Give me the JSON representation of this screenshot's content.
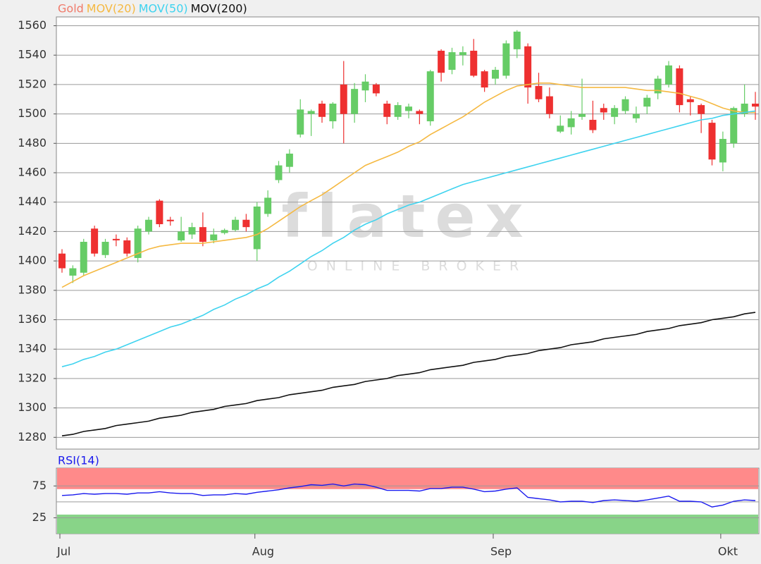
{
  "chart_data": [
    {
      "type": "candlestick",
      "name": "Gold",
      "name_color": "#f07a6a",
      "watermark": "flatex",
      "watermark_subtitle": "ONLINE BROKER",
      "up_color": "#66cc66",
      "down_color": "#ee3030",
      "categories": [
        "Jul",
        null,
        null,
        null,
        null,
        null,
        null,
        null,
        null,
        null,
        null,
        null,
        null,
        null,
        null,
        null,
        null,
        null,
        "Aug",
        null,
        null,
        null,
        null,
        null,
        null,
        null,
        null,
        null,
        null,
        null,
        null,
        null,
        null,
        null,
        null,
        null,
        null,
        null,
        null,
        null,
        "Sep",
        null,
        null,
        null,
        null,
        null,
        null,
        null,
        null,
        null,
        null,
        null,
        null,
        null,
        null,
        null,
        null,
        null,
        null,
        null,
        null,
        "Okt",
        null,
        null,
        null
      ],
      "open": [
        1405,
        1390,
        1392,
        1422,
        1404,
        1415,
        1414,
        1402,
        1420,
        1441,
        1428,
        1414,
        1418,
        1423,
        1414,
        1419,
        1421,
        1428,
        1408,
        1432,
        1455,
        1464,
        1486,
        1500,
        1507,
        1495,
        1520,
        1500,
        1516,
        1520,
        1507,
        1498,
        1502,
        1502,
        1495,
        1543,
        1530,
        1540,
        1543,
        1529,
        1524,
        1526,
        1544,
        1546,
        1519,
        1512,
        1488,
        1491,
        1498,
        1496,
        1504,
        1498,
        1502,
        1497,
        1505,
        1514,
        1520,
        1531,
        1510,
        1506,
        1494,
        1467,
        1480,
        1500,
        1507
      ],
      "high": [
        1408,
        1397,
        1415,
        1424,
        1415,
        1418,
        1416,
        1424,
        1430,
        1442,
        1430,
        1430,
        1426,
        1433,
        1422,
        1422,
        1430,
        1432,
        1440,
        1448,
        1468,
        1476,
        1510,
        1503,
        1509,
        1508,
        1536,
        1521,
        1527,
        1521,
        1509,
        1508,
        1507,
        1503,
        1530,
        1544,
        1545,
        1546,
        1551,
        1530,
        1532,
        1550,
        1557,
        1548,
        1528,
        1518,
        1499,
        1502,
        1524,
        1509,
        1507,
        1506,
        1512,
        1505,
        1513,
        1526,
        1536,
        1533,
        1512,
        1507,
        1496,
        1488,
        1505,
        1520,
        1515
      ],
      "low": [
        1392,
        1385,
        1390,
        1403,
        1402,
        1410,
        1403,
        1399,
        1418,
        1423,
        1424,
        1413,
        1415,
        1410,
        1412,
        1418,
        1420,
        1420,
        1400,
        1430,
        1453,
        1460,
        1484,
        1485,
        1494,
        1490,
        1480,
        1494,
        1508,
        1512,
        1493,
        1496,
        1497,
        1493,
        1492,
        1522,
        1527,
        1533,
        1525,
        1515,
        1520,
        1524,
        1538,
        1507,
        1508,
        1497,
        1487,
        1486,
        1496,
        1487,
        1496,
        1493,
        1500,
        1494,
        1500,
        1510,
        1518,
        1501,
        1499,
        1487,
        1465,
        1461,
        1477,
        1498,
        1496
      ],
      "close": [
        1395,
        1395,
        1413,
        1405,
        1413,
        1414,
        1405,
        1422,
        1428,
        1425,
        1427,
        1420,
        1423,
        1413,
        1418,
        1421,
        1428,
        1423,
        1437,
        1443,
        1465,
        1473,
        1503,
        1502,
        1498,
        1507,
        1500,
        1517,
        1522,
        1514,
        1498,
        1506,
        1505,
        1500,
        1529,
        1528,
        1542,
        1542,
        1526,
        1518,
        1530,
        1548,
        1556,
        1518,
        1510,
        1500,
        1492,
        1497,
        1500,
        1489,
        1501,
        1504,
        1510,
        1500,
        1511,
        1524,
        1533,
        1506,
        1508,
        1500,
        1469,
        1483,
        1504,
        1507,
        1505
      ],
      "series": [
        {
          "name": "MOV(20)",
          "color": "#f5b942",
          "values": [
            1382,
            1386,
            1390,
            1393,
            1396,
            1399,
            1402,
            1405,
            1408,
            1410,
            1411,
            1412,
            1412,
            1412,
            1413,
            1414,
            1415,
            1416,
            1418,
            1422,
            1427,
            1432,
            1437,
            1441,
            1445,
            1450,
            1455,
            1460,
            1465,
            1468,
            1471,
            1474,
            1478,
            1481,
            1486,
            1490,
            1494,
            1498,
            1503,
            1508,
            1512,
            1516,
            1519,
            1520,
            1521,
            1521,
            1520,
            1519,
            1518,
            1518,
            1518,
            1518,
            1518,
            1517,
            1516,
            1516,
            1515,
            1514,
            1512,
            1510,
            1507,
            1504,
            1502,
            1501,
            1501
          ]
        },
        {
          "name": "MOV(50)",
          "color": "#3fd3ef",
          "values": [
            1328,
            1330,
            1333,
            1335,
            1338,
            1340,
            1343,
            1346,
            1349,
            1352,
            1355,
            1357,
            1360,
            1363,
            1367,
            1370,
            1374,
            1377,
            1381,
            1384,
            1389,
            1393,
            1398,
            1403,
            1407,
            1412,
            1416,
            1421,
            1425,
            1428,
            1432,
            1435,
            1438,
            1440,
            1443,
            1446,
            1449,
            1452,
            1454,
            1456,
            1458,
            1460,
            1462,
            1464,
            1466,
            1468,
            1470,
            1472,
            1474,
            1476,
            1478,
            1480,
            1482,
            1484,
            1486,
            1488,
            1490,
            1492,
            1494,
            1496,
            1497,
            1499,
            1500,
            1501,
            1502
          ]
        },
        {
          "name": "MOV(200)",
          "color": "#111111",
          "values": [
            1281,
            1282,
            1284,
            1285,
            1286,
            1288,
            1289,
            1290,
            1291,
            1293,
            1294,
            1295,
            1297,
            1298,
            1299,
            1301,
            1302,
            1303,
            1305,
            1306,
            1307,
            1309,
            1310,
            1311,
            1312,
            1314,
            1315,
            1316,
            1318,
            1319,
            1320,
            1322,
            1323,
            1324,
            1326,
            1327,
            1328,
            1329,
            1331,
            1332,
            1333,
            1335,
            1336,
            1337,
            1339,
            1340,
            1341,
            1343,
            1344,
            1345,
            1347,
            1348,
            1349,
            1350,
            1352,
            1353,
            1354,
            1356,
            1357,
            1358,
            1360,
            1361,
            1362,
            1364,
            1365
          ]
        }
      ],
      "ylim": [
        1272,
        1566
      ],
      "yticks": [
        1280,
        1300,
        1320,
        1340,
        1360,
        1380,
        1400,
        1420,
        1440,
        1460,
        1480,
        1500,
        1520,
        1540,
        1560
      ],
      "grid": true
    },
    {
      "type": "line",
      "series": [
        {
          "name": "RSI(14)",
          "color": "#1a1aee",
          "values": [
            60,
            61,
            63,
            62,
            63,
            63,
            62,
            64,
            64,
            66,
            64,
            63,
            63,
            60,
            61,
            61,
            63,
            62,
            65,
            67,
            69,
            72,
            74,
            77,
            76,
            78,
            75,
            78,
            77,
            73,
            68,
            68,
            68,
            67,
            71,
            71,
            73,
            73,
            70,
            66,
            67,
            70,
            72,
            57,
            55,
            53,
            50,
            51,
            51,
            49,
            52,
            53,
            52,
            51,
            53,
            56,
            59,
            51,
            51,
            50,
            42,
            45,
            51,
            53,
            52
          ]
        }
      ],
      "bands": [
        {
          "from": 70,
          "to": 103,
          "color": "#ff8a8a"
        },
        {
          "from": 0,
          "to": 30,
          "color": "#88d488"
        }
      ],
      "midline": 50,
      "ylim": [
        0,
        103
      ],
      "yticks": [
        25,
        75
      ],
      "grid": true
    }
  ]
}
